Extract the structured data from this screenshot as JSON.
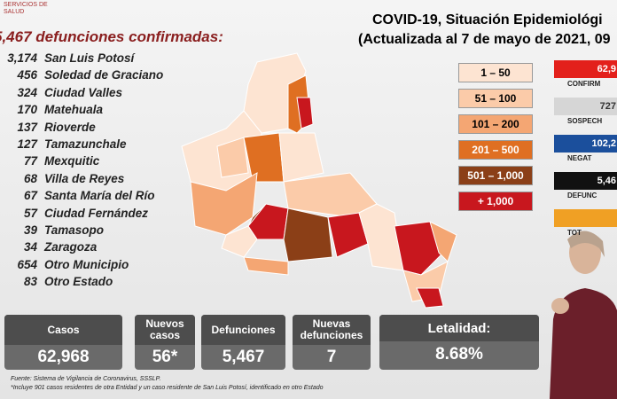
{
  "logo": "SERVICIOS DE SALUD",
  "left_title": "5,467 defunciones confirmadas:",
  "deaths_list": [
    {
      "count": "3,174",
      "place": "San Luis Potosí"
    },
    {
      "count": "456",
      "place": "Soledad de Graciano"
    },
    {
      "count": "324",
      "place": "Ciudad Valles"
    },
    {
      "count": "170",
      "place": "Matehuala"
    },
    {
      "count": "137",
      "place": "Rioverde"
    },
    {
      "count": "127",
      "place": "Tamazunchale"
    },
    {
      "count": "77",
      "place": "Mexquitic"
    },
    {
      "count": "68",
      "place": "Villa de Reyes"
    },
    {
      "count": "67",
      "place": "Santa María del Río"
    },
    {
      "count": "57",
      "place": "Ciudad Fernández"
    },
    {
      "count": "39",
      "place": "Tamasopo"
    },
    {
      "count": "34",
      "place": "Zaragoza"
    },
    {
      "count": "654",
      "place": "Otro Municipio"
    },
    {
      "count": "83",
      "place": "Otro Estado"
    }
  ],
  "header": {
    "title": "COVID-19, Situación Epidemiológi",
    "subtitle": "(Actualizada al 7 de mayo de 2021, 09"
  },
  "map_legend": [
    {
      "label": "1 – 50",
      "color": "#fde4d2"
    },
    {
      "label": "51 – 100",
      "color": "#fbcba9"
    },
    {
      "label": "101 – 200",
      "color": "#f4a673"
    },
    {
      "label": "201 – 500",
      "color": "#df6f22"
    },
    {
      "label": "501 – 1,000",
      "color": "#8b3f17"
    },
    {
      "label": "+ 1,000",
      "color": "#c8171e"
    }
  ],
  "side_stats": [
    {
      "value": "62,9",
      "label": "CONFIRM",
      "color": "#e3201b"
    },
    {
      "value": "727",
      "label": "SOSPECH",
      "color": "#d6d6d6"
    },
    {
      "value": "102,2",
      "label": "NEGAT",
      "color": "#1b4f9c"
    },
    {
      "value": "5,46",
      "label": "DEFUNC",
      "color": "#111111"
    },
    {
      "value": "",
      "label": "TOT",
      "color": "#f0a024"
    }
  ],
  "summary": [
    {
      "label": "Casos",
      "value": "62,968"
    },
    {
      "label": "Nuevos casos",
      "value": "56*"
    },
    {
      "label": "Defunciones",
      "value": "5,467"
    },
    {
      "label": "Nuevas defunciones",
      "value": "7"
    },
    {
      "label": "Letalidad:",
      "value": "8.68%"
    }
  ],
  "footnotes": [
    "Fuente: Sistema de Vigilancia de Coronavirus, SSSLP.",
    "*Incluye 901 casos residentes de otra Entidad y un caso residente de San Luis Potosí, identificado en otro Estado"
  ]
}
